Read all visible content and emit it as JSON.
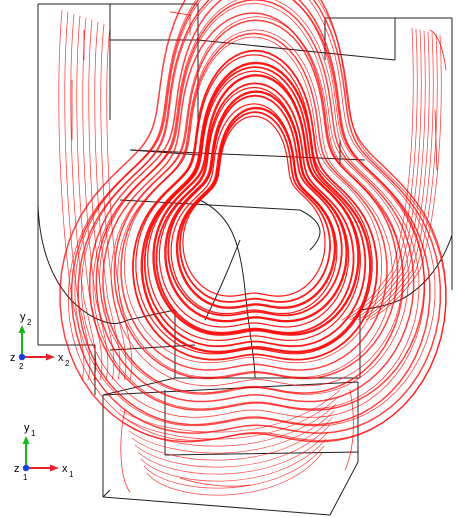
{
  "figure": {
    "description_colors": {
      "streamline": "#ff0000",
      "edge": "#202020",
      "axis_x": "#e8202a",
      "axis_y": "#18b818",
      "axis_z": "#1a3fe0"
    }
  },
  "triads": [
    {
      "x_label": "x",
      "x_sub": "2",
      "y_label": "y",
      "y_sub": "2",
      "z_label": "z",
      "z_sub": "2"
    },
    {
      "x_label": "x",
      "x_sub": "1",
      "y_label": "y",
      "y_sub": "1",
      "z_label": "z",
      "z_sub": "1"
    }
  ]
}
